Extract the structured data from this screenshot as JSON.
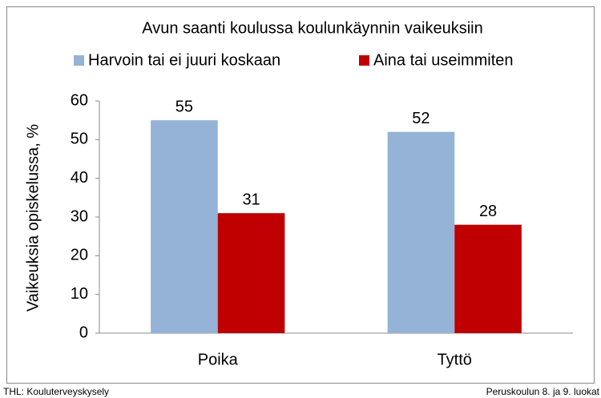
{
  "chart_data": {
    "type": "bar",
    "title": "Avun saanti koulussa koulunkäynnin vaikeuksiin",
    "y_label": "Vaikeuksia opiskelussa, %",
    "categories": [
      "Poika",
      "Tyttö"
    ],
    "series": [
      {
        "name": "Harvoin tai ei juuri koskaan",
        "color": "#95b3d7",
        "values": [
          55,
          52
        ]
      },
      {
        "name": "Aina tai useimmiten",
        "color": "#c00000",
        "values": [
          31,
          28
        ]
      }
    ],
    "ylim": [
      0,
      60
    ],
    "yticks": [
      0,
      10,
      20,
      30,
      40,
      50,
      60
    ],
    "grid": false,
    "legend": "top",
    "source": "THL: Kouluterveyskysely",
    "note": "Peruskoulun 8. ja 9. luokat"
  }
}
